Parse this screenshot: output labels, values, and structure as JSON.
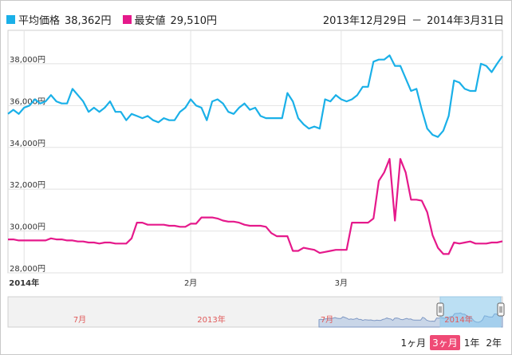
{
  "legend": {
    "avg_label": "平均価格",
    "avg_value": "38,362円",
    "min_label": "最安値",
    "min_value": "29,510円",
    "avg_color": "#1ab0e8",
    "min_color": "#e5198b"
  },
  "range": {
    "start": "2013年12月29日",
    "separator": "－",
    "end": "2014年3月31日"
  },
  "buttons": [
    {
      "label": "1ヶ月",
      "active": false
    },
    {
      "label": "3ヶ月",
      "active": true
    },
    {
      "label": "1年",
      "active": false
    },
    {
      "label": "2年",
      "active": false
    }
  ],
  "navigator": {
    "labels": [
      "7月",
      "2013年",
      "7月",
      "2014年"
    ]
  },
  "chart_data": {
    "type": "line",
    "x_start": "2013-12-29",
    "x_end": "2014-03-31",
    "x_tick_labels": [
      {
        "date": "2014-01-01",
        "label": "2014年"
      },
      {
        "date": "2014-02-01",
        "label": "2月"
      },
      {
        "date": "2014-03-01",
        "label": "3月"
      }
    ],
    "ylim": [
      28000,
      39600
    ],
    "y_ticks": [
      28000,
      30000,
      32000,
      34000,
      36000,
      38000
    ],
    "y_tick_labels": [
      "28,000円",
      "30,000円",
      "32,000円",
      "34,000円",
      "36,000円",
      "38,000円"
    ],
    "grid": true,
    "series": [
      {
        "name": "平均価格",
        "color": "#1ab0e8",
        "points": [
          [
            "2013-12-29",
            35600
          ],
          [
            "2013-12-30",
            35800
          ],
          [
            "2013-12-31",
            35600
          ],
          [
            "2014-01-01",
            35900
          ],
          [
            "2014-01-02",
            36000
          ],
          [
            "2014-01-03",
            36300
          ],
          [
            "2014-01-04",
            36100
          ],
          [
            "2014-01-05",
            36200
          ],
          [
            "2014-01-06",
            36500
          ],
          [
            "2014-01-07",
            36200
          ],
          [
            "2014-01-08",
            36100
          ],
          [
            "2014-01-09",
            36100
          ],
          [
            "2014-01-10",
            36800
          ],
          [
            "2014-01-11",
            36500
          ],
          [
            "2014-01-12",
            36200
          ],
          [
            "2014-01-13",
            35700
          ],
          [
            "2014-01-14",
            35900
          ],
          [
            "2014-01-15",
            35700
          ],
          [
            "2014-01-16",
            35900
          ],
          [
            "2014-01-17",
            36200
          ],
          [
            "2014-01-18",
            35700
          ],
          [
            "2014-01-19",
            35700
          ],
          [
            "2014-01-20",
            35300
          ],
          [
            "2014-01-21",
            35600
          ],
          [
            "2014-01-22",
            35500
          ],
          [
            "2014-01-23",
            35400
          ],
          [
            "2014-01-24",
            35500
          ],
          [
            "2014-01-25",
            35300
          ],
          [
            "2014-01-26",
            35200
          ],
          [
            "2014-01-27",
            35400
          ],
          [
            "2014-01-28",
            35300
          ],
          [
            "2014-01-29",
            35300
          ],
          [
            "2014-01-30",
            35700
          ],
          [
            "2014-01-31",
            35900
          ],
          [
            "2014-02-01",
            36300
          ],
          [
            "2014-02-02",
            36000
          ],
          [
            "2014-02-03",
            35900
          ],
          [
            "2014-02-04",
            35300
          ],
          [
            "2014-02-05",
            36200
          ],
          [
            "2014-02-06",
            36300
          ],
          [
            "2014-02-07",
            36100
          ],
          [
            "2014-02-08",
            35700
          ],
          [
            "2014-02-09",
            35600
          ],
          [
            "2014-02-10",
            35900
          ],
          [
            "2014-02-11",
            36100
          ],
          [
            "2014-02-12",
            35800
          ],
          [
            "2014-02-13",
            35900
          ],
          [
            "2014-02-14",
            35500
          ],
          [
            "2014-02-15",
            35400
          ],
          [
            "2014-02-16",
            35400
          ],
          [
            "2014-02-17",
            35400
          ],
          [
            "2014-02-18",
            35400
          ],
          [
            "2014-02-19",
            36600
          ],
          [
            "2014-02-20",
            36200
          ],
          [
            "2014-02-21",
            35400
          ],
          [
            "2014-02-22",
            35100
          ],
          [
            "2014-02-23",
            34900
          ],
          [
            "2014-02-24",
            35000
          ],
          [
            "2014-02-25",
            34900
          ],
          [
            "2014-02-26",
            36300
          ],
          [
            "2014-02-27",
            36200
          ],
          [
            "2014-02-28",
            36500
          ],
          [
            "2014-03-01",
            36300
          ],
          [
            "2014-03-02",
            36200
          ],
          [
            "2014-03-03",
            36300
          ],
          [
            "2014-03-04",
            36500
          ],
          [
            "2014-03-05",
            36900
          ],
          [
            "2014-03-06",
            36900
          ],
          [
            "2014-03-07",
            38100
          ],
          [
            "2014-03-08",
            38200
          ],
          [
            "2014-03-09",
            38200
          ],
          [
            "2014-03-10",
            38400
          ],
          [
            "2014-03-11",
            37900
          ],
          [
            "2014-03-12",
            37900
          ],
          [
            "2014-03-13",
            37300
          ],
          [
            "2014-03-14",
            36700
          ],
          [
            "2014-03-15",
            36800
          ],
          [
            "2014-03-16",
            35800
          ],
          [
            "2014-03-17",
            34900
          ],
          [
            "2014-03-18",
            34600
          ],
          [
            "2014-03-19",
            34500
          ],
          [
            "2014-03-20",
            34800
          ],
          [
            "2014-03-21",
            35500
          ],
          [
            "2014-03-22",
            37200
          ],
          [
            "2014-03-23",
            37100
          ],
          [
            "2014-03-24",
            36800
          ],
          [
            "2014-03-25",
            36700
          ],
          [
            "2014-03-26",
            36700
          ],
          [
            "2014-03-27",
            38000
          ],
          [
            "2014-03-28",
            37900
          ],
          [
            "2014-03-29",
            37600
          ],
          [
            "2014-03-30",
            38000
          ],
          [
            "2014-03-31",
            38362
          ]
        ]
      },
      {
        "name": "最安値",
        "color": "#e5198b",
        "points": [
          [
            "2013-12-29",
            29600
          ],
          [
            "2013-12-30",
            29600
          ],
          [
            "2013-12-31",
            29550
          ],
          [
            "2014-01-01",
            29550
          ],
          [
            "2014-01-02",
            29550
          ],
          [
            "2014-01-03",
            29550
          ],
          [
            "2014-01-04",
            29550
          ],
          [
            "2014-01-05",
            29550
          ],
          [
            "2014-01-06",
            29650
          ],
          [
            "2014-01-07",
            29600
          ],
          [
            "2014-01-08",
            29600
          ],
          [
            "2014-01-09",
            29550
          ],
          [
            "2014-01-10",
            29550
          ],
          [
            "2014-01-11",
            29500
          ],
          [
            "2014-01-12",
            29500
          ],
          [
            "2014-01-13",
            29450
          ],
          [
            "2014-01-14",
            29450
          ],
          [
            "2014-01-15",
            29400
          ],
          [
            "2014-01-16",
            29450
          ],
          [
            "2014-01-17",
            29450
          ],
          [
            "2014-01-18",
            29400
          ],
          [
            "2014-01-19",
            29400
          ],
          [
            "2014-01-20",
            29400
          ],
          [
            "2014-01-21",
            29650
          ],
          [
            "2014-01-22",
            30400
          ],
          [
            "2014-01-23",
            30400
          ],
          [
            "2014-01-24",
            30300
          ],
          [
            "2014-01-25",
            30300
          ],
          [
            "2014-01-26",
            30300
          ],
          [
            "2014-01-27",
            30300
          ],
          [
            "2014-01-28",
            30250
          ],
          [
            "2014-01-29",
            30250
          ],
          [
            "2014-01-30",
            30200
          ],
          [
            "2014-01-31",
            30200
          ],
          [
            "2014-02-01",
            30350
          ],
          [
            "2014-02-02",
            30350
          ],
          [
            "2014-02-03",
            30650
          ],
          [
            "2014-02-04",
            30650
          ],
          [
            "2014-02-05",
            30650
          ],
          [
            "2014-02-06",
            30600
          ],
          [
            "2014-02-07",
            30500
          ],
          [
            "2014-02-08",
            30450
          ],
          [
            "2014-02-09",
            30450
          ],
          [
            "2014-02-10",
            30400
          ],
          [
            "2014-02-11",
            30300
          ],
          [
            "2014-02-12",
            30250
          ],
          [
            "2014-02-13",
            30250
          ],
          [
            "2014-02-14",
            30250
          ],
          [
            "2014-02-15",
            30200
          ],
          [
            "2014-02-16",
            29900
          ],
          [
            "2014-02-17",
            29750
          ],
          [
            "2014-02-18",
            29750
          ],
          [
            "2014-02-19",
            29750
          ],
          [
            "2014-02-20",
            29050
          ],
          [
            "2014-02-21",
            29050
          ],
          [
            "2014-02-22",
            29200
          ],
          [
            "2014-02-23",
            29150
          ],
          [
            "2014-02-24",
            29100
          ],
          [
            "2014-02-25",
            28950
          ],
          [
            "2014-02-26",
            29000
          ],
          [
            "2014-02-27",
            29050
          ],
          [
            "2014-02-28",
            29100
          ],
          [
            "2014-03-01",
            29100
          ],
          [
            "2014-03-02",
            29100
          ],
          [
            "2014-03-03",
            30400
          ],
          [
            "2014-03-04",
            30400
          ],
          [
            "2014-03-05",
            30400
          ],
          [
            "2014-03-06",
            30400
          ],
          [
            "2014-03-07",
            30600
          ],
          [
            "2014-03-08",
            32400
          ],
          [
            "2014-03-09",
            32800
          ],
          [
            "2014-03-10",
            33450
          ],
          [
            "2014-03-11",
            30500
          ],
          [
            "2014-03-12",
            33450
          ],
          [
            "2014-03-13",
            32800
          ],
          [
            "2014-03-14",
            31500
          ],
          [
            "2014-03-15",
            31500
          ],
          [
            "2014-03-16",
            31450
          ],
          [
            "2014-03-17",
            30900
          ],
          [
            "2014-03-18",
            29800
          ],
          [
            "2014-03-19",
            29200
          ],
          [
            "2014-03-20",
            28900
          ],
          [
            "2014-03-21",
            28900
          ],
          [
            "2014-03-22",
            29450
          ],
          [
            "2014-03-23",
            29400
          ],
          [
            "2014-03-24",
            29450
          ],
          [
            "2014-03-25",
            29500
          ],
          [
            "2014-03-26",
            29400
          ],
          [
            "2014-03-27",
            29400
          ],
          [
            "2014-03-28",
            29400
          ],
          [
            "2014-03-29",
            29450
          ],
          [
            "2014-03-30",
            29450
          ],
          [
            "2014-03-31",
            29510
          ]
        ]
      }
    ]
  }
}
